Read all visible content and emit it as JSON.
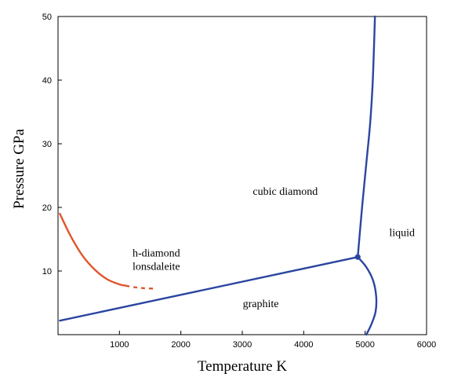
{
  "chart_data": {
    "type": "line",
    "xlabel": "Temperature K",
    "ylabel": "Pressure GPa",
    "xlim": [
      0,
      6000
    ],
    "ylim": [
      0,
      50
    ],
    "x_ticks": [
      1000,
      2000,
      3000,
      4000,
      5000,
      6000
    ],
    "y_ticks": [
      10,
      20,
      30,
      40,
      50
    ],
    "grid": false,
    "legend": "none",
    "series": [
      {
        "color": "#2b46a0",
        "style": "solid",
        "points": [
          [
            30,
            2.2
          ],
          [
            4880,
            12.2
          ]
        ]
      },
      {
        "color": "#2b46a0",
        "style": "solid",
        "points": [
          [
            4880,
            12.2
          ],
          [
            4950,
            20
          ],
          [
            5020,
            27
          ],
          [
            5080,
            33
          ],
          [
            5120,
            39
          ],
          [
            5140,
            44
          ],
          [
            5160,
            50
          ]
        ]
      },
      {
        "color": "#2b46a0",
        "style": "solid",
        "points": [
          [
            4880,
            12.2
          ],
          [
            5020,
            10.6
          ],
          [
            5130,
            8.5
          ],
          [
            5180,
            6.0
          ],
          [
            5170,
            3.6
          ],
          [
            5100,
            1.6
          ],
          [
            5020,
            0
          ]
        ]
      },
      {
        "color": "#e0562a",
        "style": "solid",
        "points": [
          [
            30,
            19
          ],
          [
            200,
            15.6
          ],
          [
            400,
            12.4
          ],
          [
            600,
            10.2
          ],
          [
            800,
            8.7
          ],
          [
            1000,
            7.9
          ],
          [
            1100,
            7.7
          ]
        ]
      },
      {
        "color": "#e0562a",
        "style": "dashed",
        "points": [
          [
            1100,
            7.7
          ],
          [
            1250,
            7.45
          ],
          [
            1400,
            7.3
          ],
          [
            1550,
            7.25
          ]
        ]
      }
    ],
    "markers": [
      {
        "x": 4880,
        "y": 12.2,
        "color": "#2b46a0"
      }
    ],
    "annotations": [
      {
        "text": "cubic diamond",
        "x": 3700,
        "y": 22
      },
      {
        "text": "liquid",
        "x": 5600,
        "y": 15.5
      },
      {
        "text": "h-diamond",
        "x": 1600,
        "y": 12.3
      },
      {
        "text": "lonsdaleite",
        "x": 1600,
        "y": 10.2
      },
      {
        "text": "graphite",
        "x": 3300,
        "y": 4.3
      }
    ]
  }
}
